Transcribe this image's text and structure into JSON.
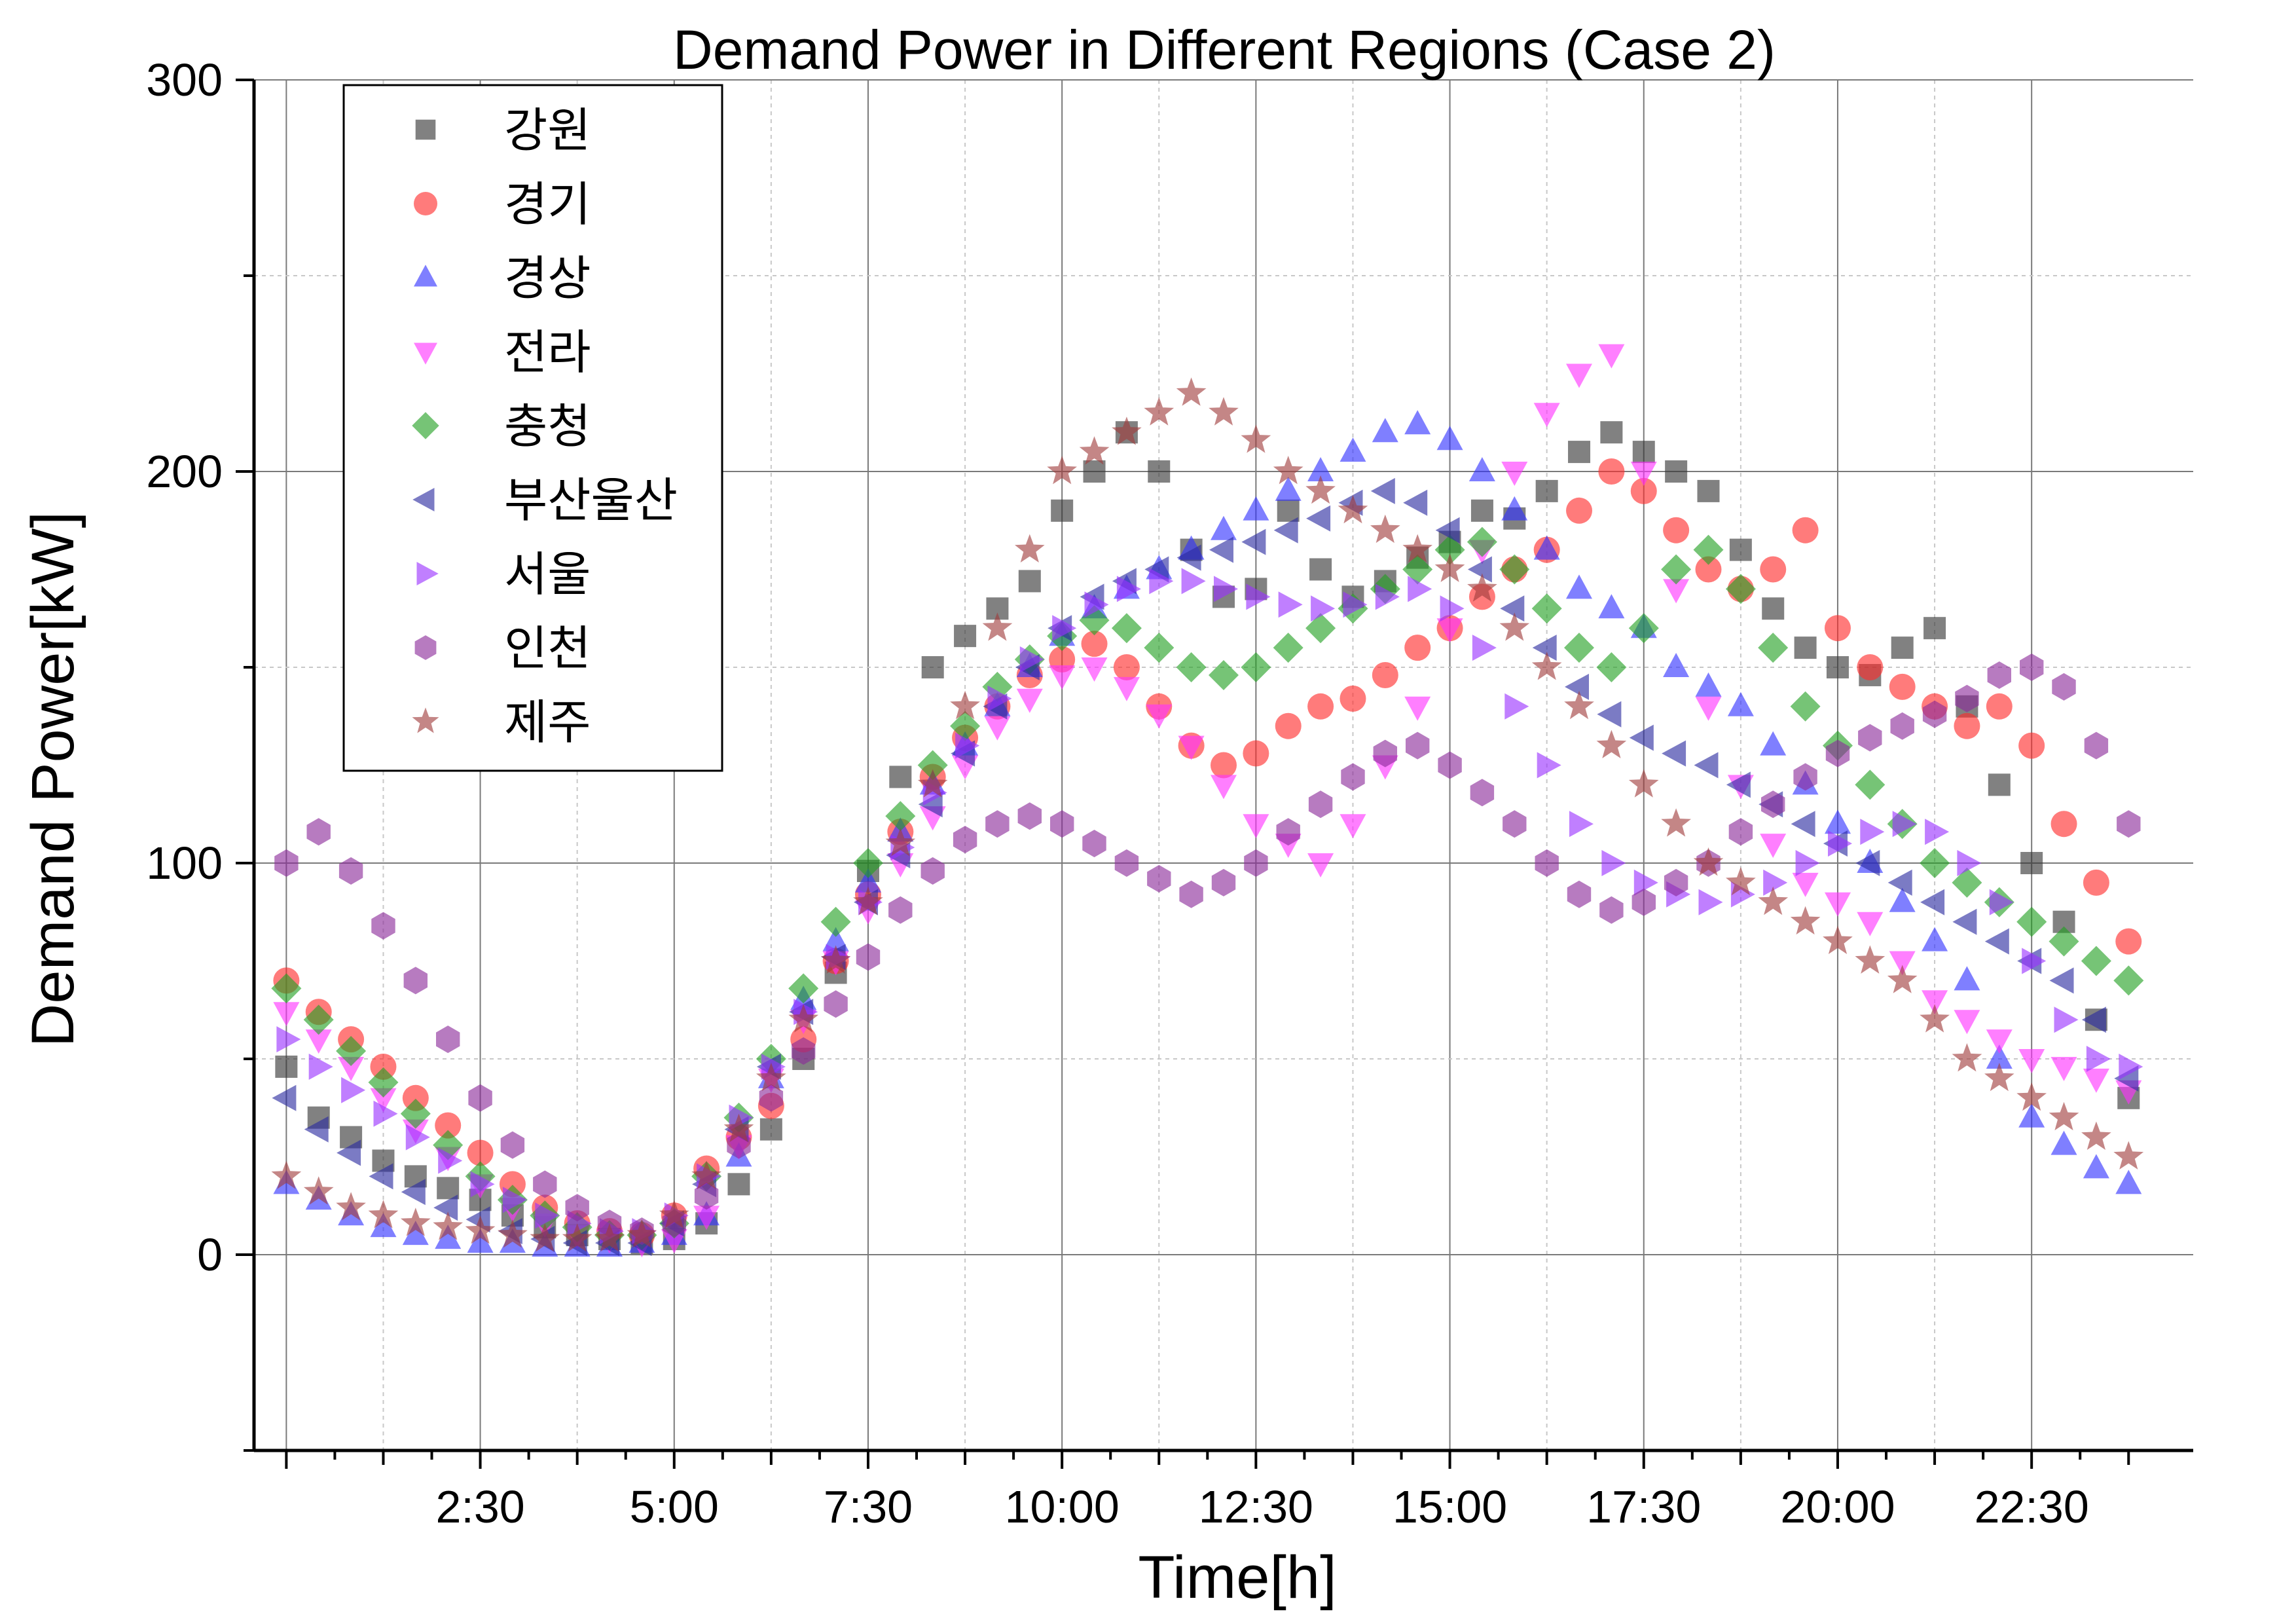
{
  "chart_data": {
    "type": "scatter",
    "title": "Demand Power in Different Regions (Case 2)",
    "xlabel": "Time[h]",
    "ylabel": "Demand Power[kW]",
    "xlim": [
      -0.5,
      29.5
    ],
    "ylim": [
      -50,
      300
    ],
    "x_ticks": [
      {
        "value": 3,
        "label": "2:30"
      },
      {
        "value": 6,
        "label": "5:00"
      },
      {
        "value": 9,
        "label": "7:30"
      },
      {
        "value": 12,
        "label": "10:00"
      },
      {
        "value": 15,
        "label": "12:30"
      },
      {
        "value": 18,
        "label": "15:00"
      },
      {
        "value": 21,
        "label": "17:30"
      },
      {
        "value": 24,
        "label": "20:00"
      },
      {
        "value": 27,
        "label": "22:30"
      }
    ],
    "y_ticks": [
      {
        "value": 0,
        "label": "0"
      },
      {
        "value": 100,
        "label": "100"
      },
      {
        "value": 200,
        "label": "200"
      },
      {
        "value": 300,
        "label": "300"
      }
    ],
    "grid": true,
    "legend_position": "top-left",
    "x": [
      0.0,
      0.5,
      1.0,
      1.5,
      2.0,
      2.5,
      3.0,
      3.5,
      4.0,
      4.5,
      5.0,
      5.5,
      6.0,
      6.5,
      7.0,
      7.5,
      8.0,
      8.5,
      9.0,
      9.5,
      10.0,
      10.5,
      11.0,
      11.5,
      12.0,
      12.5,
      13.0,
      13.5,
      14.0,
      14.5,
      15.0,
      15.5,
      16.0,
      16.5,
      17.0,
      17.5,
      18.0,
      18.5,
      19.0,
      19.5,
      20.0,
      20.5,
      21.0,
      21.5,
      22.0,
      22.5,
      23.0,
      23.5,
      24.0,
      24.5,
      25.0,
      25.5,
      26.0,
      26.5,
      27.0,
      27.5,
      28.0,
      28.5
    ],
    "series": [
      {
        "name": "강원",
        "marker": "square",
        "color": "#333333",
        "values": [
          48,
          35,
          30,
          24,
          20,
          17,
          14,
          10,
          7,
          5,
          4,
          3,
          4,
          8,
          18,
          32,
          50,
          72,
          98,
          122,
          150,
          158,
          165,
          172,
          190,
          200,
          210,
          200,
          180,
          168,
          170,
          190,
          175,
          168,
          172,
          178,
          182,
          190,
          188,
          195,
          205,
          210,
          205,
          200,
          195,
          180,
          165,
          155,
          150,
          148,
          155,
          160,
          140,
          120,
          100,
          85,
          60,
          40
        ]
      },
      {
        "name": "경기",
        "marker": "circle",
        "color": "#ff2a2a",
        "values": [
          70,
          62,
          55,
          48,
          40,
          33,
          26,
          18,
          12,
          8,
          6,
          5,
          10,
          22,
          30,
          38,
          55,
          75,
          92,
          108,
          122,
          132,
          140,
          148,
          152,
          156,
          150,
          140,
          130,
          125,
          128,
          135,
          140,
          142,
          148,
          155,
          160,
          168,
          175,
          180,
          190,
          200,
          195,
          185,
          175,
          170,
          175,
          185,
          160,
          150,
          145,
          140,
          135,
          140,
          130,
          110,
          95,
          80
        ]
      },
      {
        "name": "경상",
        "marker": "triangle-up",
        "color": "#3030ff",
        "values": [
          18,
          14,
          10,
          7,
          5,
          4,
          3,
          3,
          2,
          2,
          2,
          3,
          5,
          10,
          25,
          45,
          65,
          80,
          95,
          108,
          120,
          130,
          140,
          150,
          158,
          165,
          170,
          175,
          180,
          185,
          190,
          195,
          200,
          205,
          210,
          212,
          208,
          200,
          190,
          180,
          170,
          165,
          160,
          150,
          145,
          140,
          130,
          120,
          110,
          100,
          90,
          80,
          70,
          50,
          35,
          28,
          22,
          18
        ]
      },
      {
        "name": "전라",
        "marker": "triangle-down",
        "color": "#ff30ff",
        "values": [
          62,
          55,
          48,
          40,
          32,
          25,
          18,
          12,
          8,
          5,
          4,
          3,
          4,
          10,
          28,
          45,
          60,
          75,
          88,
          100,
          112,
          125,
          135,
          142,
          148,
          150,
          145,
          138,
          130,
          120,
          110,
          105,
          100,
          110,
          125,
          140,
          160,
          180,
          200,
          215,
          225,
          230,
          200,
          170,
          140,
          120,
          105,
          95,
          90,
          85,
          75,
          65,
          60,
          55,
          50,
          48,
          45,
          42
        ]
      },
      {
        "name": "충청",
        "marker": "diamond",
        "color": "#22a022",
        "values": [
          68,
          60,
          52,
          44,
          36,
          28,
          20,
          14,
          10,
          7,
          5,
          5,
          8,
          20,
          35,
          50,
          68,
          85,
          100,
          112,
          125,
          135,
          145,
          152,
          158,
          162,
          160,
          155,
          150,
          148,
          150,
          155,
          160,
          165,
          170,
          175,
          180,
          182,
          175,
          165,
          155,
          150,
          160,
          175,
          180,
          170,
          155,
          140,
          130,
          120,
          110,
          100,
          95,
          90,
          85,
          80,
          75,
          70
        ]
      },
      {
        "name": "부산울산",
        "marker": "triangle-left",
        "color": "#2a2aa0",
        "values": [
          40,
          32,
          26,
          20,
          16,
          12,
          9,
          6,
          4,
          3,
          3,
          3,
          8,
          18,
          32,
          48,
          62,
          76,
          90,
          102,
          115,
          128,
          140,
          150,
          160,
          168,
          172,
          175,
          178,
          180,
          182,
          185,
          188,
          192,
          195,
          192,
          185,
          175,
          165,
          155,
          145,
          138,
          132,
          128,
          125,
          120,
          115,
          110,
          105,
          100,
          95,
          90,
          85,
          80,
          75,
          70,
          60,
          45
        ]
      },
      {
        "name": "서울",
        "marker": "triangle-right",
        "color": "#9a30ff",
        "values": [
          55,
          48,
          42,
          36,
          30,
          24,
          18,
          14,
          10,
          8,
          6,
          6,
          10,
          20,
          35,
          48,
          62,
          76,
          90,
          104,
          118,
          130,
          142,
          152,
          160,
          166,
          170,
          172,
          172,
          170,
          168,
          166,
          165,
          166,
          168,
          170,
          165,
          155,
          140,
          125,
          110,
          100,
          95,
          92,
          90,
          92,
          95,
          100,
          105,
          108,
          110,
          108,
          100,
          90,
          75,
          60,
          50,
          48
        ]
      },
      {
        "name": "인천",
        "marker": "hexagon",
        "color": "#8a2a9a",
        "values": [
          100,
          108,
          98,
          84,
          70,
          55,
          40,
          28,
          18,
          12,
          8,
          6,
          8,
          15,
          28,
          40,
          52,
          64,
          76,
          88,
          98,
          106,
          110,
          112,
          110,
          105,
          100,
          96,
          92,
          95,
          100,
          108,
          115,
          122,
          128,
          130,
          125,
          118,
          110,
          100,
          92,
          88,
          90,
          95,
          100,
          108,
          115,
          122,
          128,
          132,
          135,
          138,
          142,
          148,
          150,
          145,
          130,
          110
        ]
      },
      {
        "name": "제주",
        "marker": "star",
        "color": "#a03c3c",
        "values": [
          20,
          16,
          12,
          10,
          8,
          7,
          6,
          5,
          4,
          4,
          4,
          5,
          10,
          20,
          32,
          45,
          60,
          75,
          90,
          105,
          120,
          140,
          160,
          180,
          200,
          205,
          210,
          215,
          220,
          215,
          208,
          200,
          195,
          190,
          185,
          180,
          175,
          170,
          160,
          150,
          140,
          130,
          120,
          110,
          100,
          95,
          90,
          85,
          80,
          75,
          70,
          60,
          50,
          45,
          40,
          35,
          30,
          25
        ]
      }
    ]
  }
}
